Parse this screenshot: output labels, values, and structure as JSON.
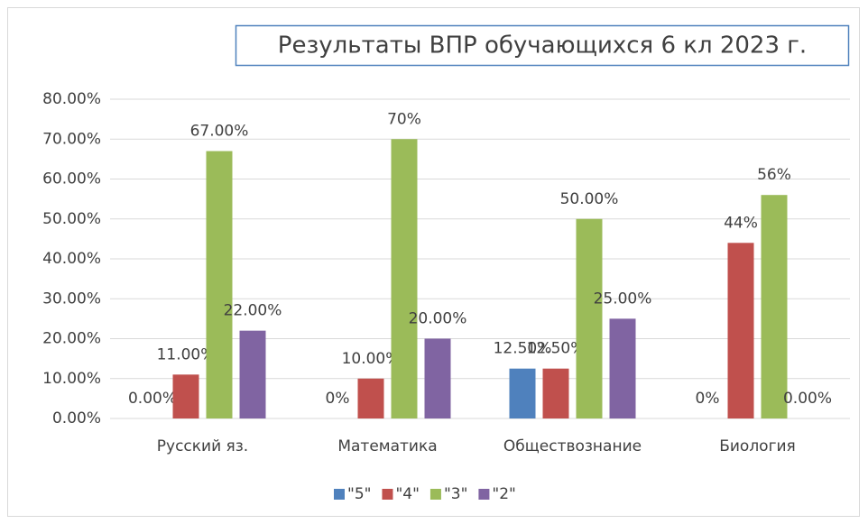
{
  "chart_data": {
    "type": "bar",
    "title": "Результаты ВПР обучающихся  6 кл 2023 г.",
    "categories": [
      "Русский яз.",
      "Математика",
      "Обществознание",
      "Биология"
    ],
    "series": [
      {
        "name": "\"5\"",
        "color": "#4f81bd",
        "values": [
          0,
          0,
          12.5,
          0
        ],
        "value_labels": [
          "0.00%",
          "0%",
          "12.50%",
          "0%"
        ]
      },
      {
        "name": "\"4\"",
        "color": "#c0504d",
        "values": [
          11,
          10,
          12.5,
          44
        ],
        "value_labels": [
          "11.00%",
          "10.00%",
          "12.50%",
          "44%"
        ]
      },
      {
        "name": "\"3\"",
        "color": "#9bbb59",
        "values": [
          67,
          70,
          50,
          56
        ],
        "value_labels": [
          "67.00%",
          "70%",
          "50.00%",
          "56%"
        ]
      },
      {
        "name": "\"2\"",
        "color": "#8064a2",
        "values": [
          22,
          20,
          25,
          0
        ],
        "value_labels": [
          "22.00%",
          "20.00%",
          "25.00%",
          "0.00%"
        ]
      }
    ],
    "ylim": [
      0,
      80
    ],
    "yticks": [
      {
        "value": 0,
        "label": "0.00%"
      },
      {
        "value": 10,
        "label": "10.00%"
      },
      {
        "value": 20,
        "label": "20.00%"
      },
      {
        "value": 30,
        "label": "30.00%"
      },
      {
        "value": 40,
        "label": "40.00%"
      },
      {
        "value": 50,
        "label": "50.00%"
      },
      {
        "value": 60,
        "label": "60.00%"
      },
      {
        "value": 70,
        "label": "70.00%"
      },
      {
        "value": 80,
        "label": "80.00%"
      }
    ],
    "grid": true,
    "legend": "bottom"
  }
}
